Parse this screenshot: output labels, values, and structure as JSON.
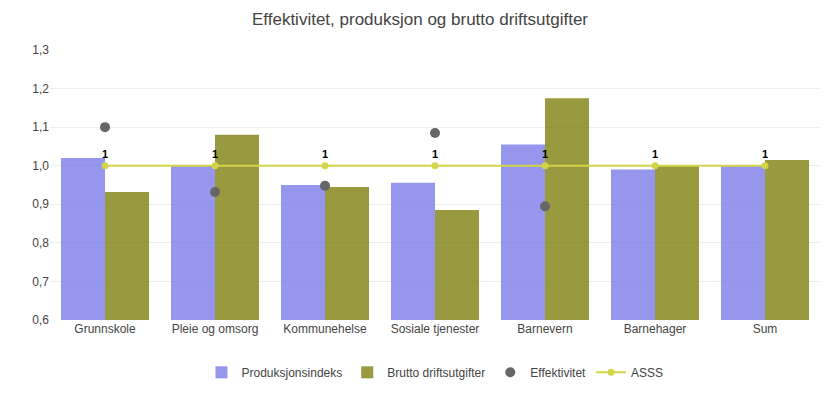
{
  "chart_data": {
    "type": "bar",
    "title": "Effektivitet, produksjon og brutto driftsutgifter",
    "categories": [
      "Grunnskole",
      "Pleie og omsorg",
      "Kommunehelse",
      "Sosiale tjenester",
      "Barnevern",
      "Barnehager",
      "Sum"
    ],
    "series": [
      {
        "name": "Produksjonsindeks",
        "type": "bar",
        "color": "#7b7de8",
        "values": [
          1.02,
          1.0,
          0.95,
          0.956,
          1.055,
          0.99,
          1.0
        ]
      },
      {
        "name": "Brutto driftsutgifter",
        "type": "bar",
        "color": "#808010",
        "values": [
          0.932,
          1.08,
          0.945,
          0.885,
          1.175,
          1.0,
          1.015
        ]
      },
      {
        "name": "Effektivitet",
        "type": "scatter",
        "marker": "circle",
        "color": "#666666",
        "values": [
          1.1,
          0.932,
          0.948,
          1.085,
          0.895,
          null,
          null
        ]
      },
      {
        "name": "ASSS",
        "type": "line",
        "marker": "circle",
        "color": "#d4d44a",
        "values": [
          1.0,
          1.0,
          1.0,
          1.0,
          1.0,
          1.0,
          1.0
        ]
      }
    ],
    "annotations": [
      "1",
      "1",
      "1",
      "1",
      "1",
      "1",
      "1"
    ],
    "ylim": [
      0.6,
      1.3
    ],
    "yticks": [
      {
        "value": 0.6,
        "label": "0,6"
      },
      {
        "value": 0.7,
        "label": "0,7"
      },
      {
        "value": 0.8,
        "label": "0,8"
      },
      {
        "value": 0.9,
        "label": "0,9"
      },
      {
        "value": 1.0,
        "label": "1,0"
      },
      {
        "value": 1.1,
        "label": "1,1"
      },
      {
        "value": 1.2,
        "label": "1,2"
      },
      {
        "value": 1.3,
        "label": "1,3"
      }
    ],
    "grid": true,
    "legend": "bottom"
  }
}
